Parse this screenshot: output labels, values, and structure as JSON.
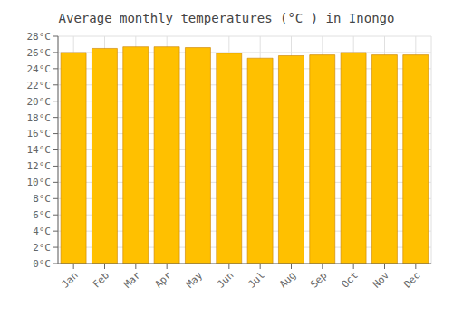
{
  "chart_data": {
    "type": "bar",
    "title": "Average monthly temperatures (°C ) in Inongo",
    "categories": [
      "Jan",
      "Feb",
      "Mar",
      "Apr",
      "May",
      "Jun",
      "Jul",
      "Aug",
      "Sep",
      "Oct",
      "Nov",
      "Dec"
    ],
    "values": [
      26.0,
      26.5,
      26.7,
      26.7,
      26.6,
      25.9,
      25.3,
      25.6,
      25.7,
      26.0,
      25.7,
      25.7
    ],
    "color": "#FFC000",
    "ylim": [
      0,
      28
    ],
    "yticks": [
      {
        "value": 0,
        "label": "0°C"
      },
      {
        "value": 2,
        "label": "2°C"
      },
      {
        "value": 4,
        "label": "4°C"
      },
      {
        "value": 6,
        "label": "6°C"
      },
      {
        "value": 8,
        "label": "8°C"
      },
      {
        "value": 10,
        "label": "10°C"
      },
      {
        "value": 12,
        "label": "12°C"
      },
      {
        "value": 14,
        "label": "14°C"
      },
      {
        "value": 16,
        "label": "16°C"
      },
      {
        "value": 18,
        "label": "18°C"
      },
      {
        "value": 20,
        "label": "20°C"
      },
      {
        "value": 22,
        "label": "22°C"
      },
      {
        "value": 24,
        "label": "24°C"
      },
      {
        "value": 26,
        "label": "26°C"
      },
      {
        "value": 28,
        "label": "28°C"
      }
    ],
    "grid": true
  }
}
